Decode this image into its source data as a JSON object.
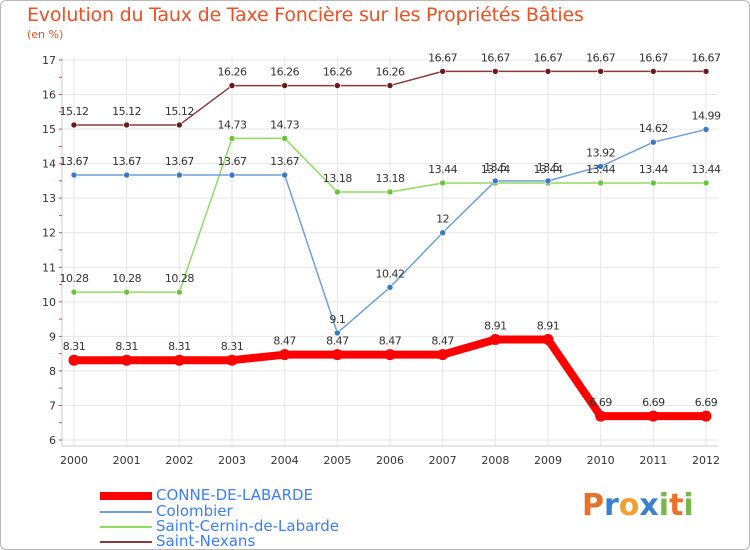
{
  "header": {
    "title": "Evolution du Taux de Taxe Foncière sur les Propriétés Bâties",
    "unit": "(en %)"
  },
  "logo": {
    "text": "Proxiti",
    "letters": [
      "P",
      "r",
      "o",
      "x",
      "i",
      "t",
      "i"
    ],
    "colors": [
      "#e8702a",
      "#3a7fd0",
      "#f0a030",
      "#3a7fd0",
      "#7ab648",
      "#e8702a",
      "#7ab648"
    ]
  },
  "chart_data": {
    "type": "line",
    "title": "Evolution du Taux de Taxe Foncière sur les Propriétés Bâties",
    "ylabel": "(en %)",
    "xlabel": "",
    "categories": [
      "2000",
      "2001",
      "2002",
      "2003",
      "2004",
      "2005",
      "2006",
      "2007",
      "2008",
      "2009",
      "2010",
      "2011",
      "2012"
    ],
    "ylim": [
      6,
      17
    ],
    "yticks": [
      6,
      7,
      8,
      9,
      10,
      11,
      12,
      13,
      14,
      15,
      16,
      17
    ],
    "grid": true,
    "legend": "bottom-left",
    "series": [
      {
        "name": "CONNE-DE-LABARDE",
        "color": "#ff0000",
        "marker": "#ff0000",
        "width": 8,
        "values": [
          8.31,
          8.31,
          8.31,
          8.31,
          8.47,
          8.47,
          8.47,
          8.47,
          8.91,
          8.91,
          6.69,
          6.69,
          6.69
        ],
        "labels": [
          "8.31",
          "8.31",
          "8.31",
          "8.31",
          "8.47",
          "8.47",
          "8.47",
          "8.47",
          "8.91",
          "8.91",
          "6.69",
          "6.69",
          "6.69"
        ]
      },
      {
        "name": "Colombier",
        "color": "#6f9fd8",
        "marker": "#3a78c8",
        "width": 1.5,
        "values": [
          13.67,
          13.67,
          13.67,
          13.67,
          13.67,
          9.1,
          10.42,
          12,
          13.5,
          13.5,
          13.92,
          14.62,
          14.99
        ],
        "labels": [
          "13.67",
          "13.67",
          "13.67",
          "13.67",
          "13.67",
          "9.1",
          "10.42",
          "12",
          "13.5",
          "13.5",
          "13.92",
          "14.62",
          "14.99"
        ]
      },
      {
        "name": "Saint-Cernin-de-Labarde",
        "color": "#8fdc60",
        "marker": "#6dc43a",
        "width": 1.5,
        "values": [
          10.28,
          10.28,
          10.28,
          14.73,
          14.73,
          13.18,
          13.18,
          13.44,
          13.44,
          13.44,
          13.44,
          13.44,
          13.44
        ],
        "labels": [
          "10.28",
          "10.28",
          "10.28",
          "14.73",
          "14.73",
          "13.18",
          "13.18",
          "13.44",
          "13.44",
          "13.44",
          "13.44",
          "13.44",
          "13.44"
        ]
      },
      {
        "name": "Saint-Nexans",
        "color": "#8b3a3a",
        "marker": "#6a1a1a",
        "width": 1.5,
        "values": [
          15.12,
          15.12,
          15.12,
          16.26,
          16.26,
          16.26,
          16.26,
          16.67,
          16.67,
          16.67,
          16.67,
          16.67,
          16.67
        ],
        "labels": [
          "15.12",
          "15.12",
          "15.12",
          "16.26",
          "16.26",
          "16.26",
          "16.26",
          "16.67",
          "16.67",
          "16.67",
          "16.67",
          "16.67",
          "16.67"
        ]
      }
    ]
  }
}
